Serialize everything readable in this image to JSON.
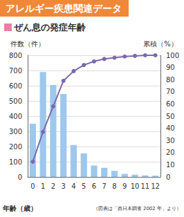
{
  "header": "アレルギー疾患関連データ",
  "chart_data": {
    "type": "bar",
    "title": "ぜん息の発症年齢",
    "x_label": "年齢（歳）",
    "y_label": "件数（件）",
    "y2_label": "累積（%）",
    "annotation": "（図表は「西日本調査 2002 年」より）",
    "categories": [
      "0",
      "1",
      "2",
      "3",
      "4",
      "5",
      "6",
      "7",
      "8",
      "9",
      "10",
      "11",
      "12"
    ],
    "series": [
      {
        "type": "bar",
        "color": "#9dc8ec",
        "values": [
          350,
          690,
          605,
          545,
          210,
          155,
          75,
          60,
          40,
          20,
          15,
          10,
          8
        ]
      },
      {
        "type": "line",
        "axis": "y2",
        "color": "#7b68b0",
        "marker": "circle",
        "values": [
          12.5,
          37,
          58,
          79,
          87,
          92,
          95,
          97,
          98,
          99,
          99.5,
          100,
          100
        ]
      }
    ],
    "ylim": [
      0,
      800
    ],
    "yticks": [
      0,
      100,
      200,
      300,
      400,
      500,
      600,
      700,
      800
    ],
    "y2lim": [
      0,
      100
    ],
    "y2ticks": [
      0,
      10,
      20,
      30,
      40,
      50,
      60,
      70,
      80,
      90,
      100
    ],
    "grid": true
  }
}
